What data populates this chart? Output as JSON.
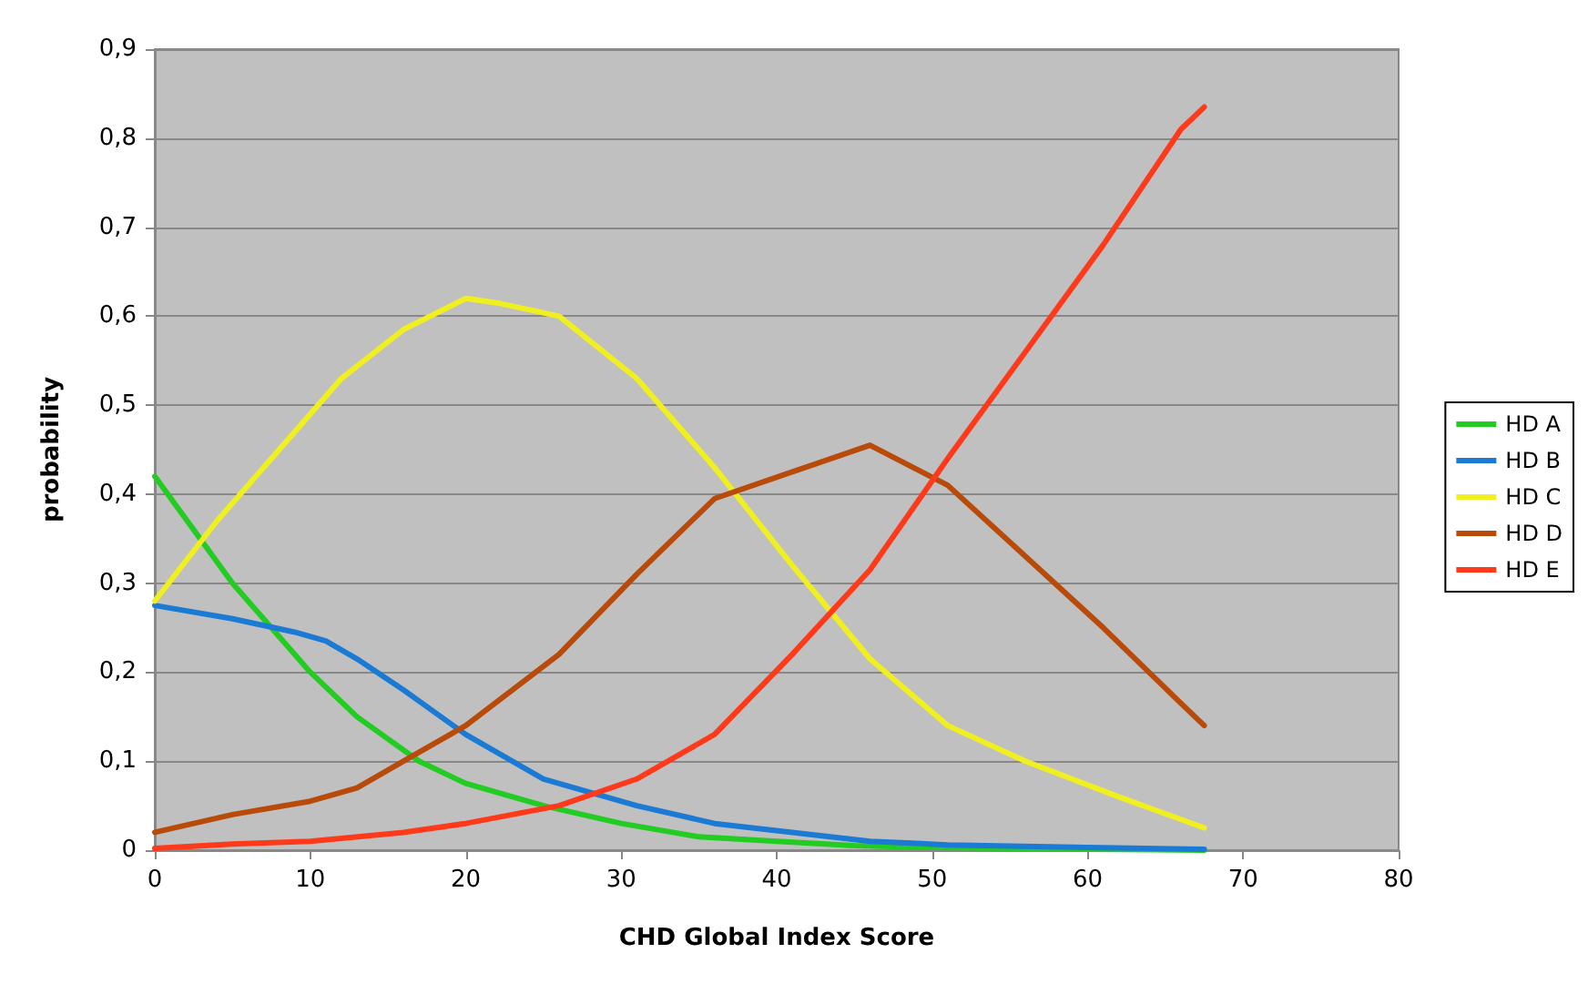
{
  "chart_data": {
    "type": "line",
    "xlabel": "CHD Global Index Score",
    "ylabel": "probability",
    "xlim": [
      0,
      80
    ],
    "xticks": [
      0,
      10,
      20,
      30,
      40,
      50,
      60,
      70,
      80
    ],
    "ylim": [
      0,
      0.9
    ],
    "yticks": [
      {
        "value": 0,
        "label": "0"
      },
      {
        "value": 0.1,
        "label": "0,1"
      },
      {
        "value": 0.2,
        "label": "0,2"
      },
      {
        "value": 0.3,
        "label": "0,3"
      },
      {
        "value": 0.4,
        "label": "0,4"
      },
      {
        "value": 0.5,
        "label": "0,5"
      },
      {
        "value": 0.6,
        "label": "0,6"
      },
      {
        "value": 0.7,
        "label": "0,7"
      },
      {
        "value": 0.8,
        "label": "0,8"
      },
      {
        "value": 0.9,
        "label": "0,9"
      }
    ],
    "grid": "y",
    "legend": "right",
    "marker": "none",
    "line_style": "solid",
    "series": [
      {
        "name": "HD A",
        "color": "#22cc22",
        "x": [
          0,
          5,
          10,
          13,
          17,
          20,
          25,
          30,
          35,
          40,
          45,
          50,
          60,
          67.5
        ],
        "values": [
          0.42,
          0.3,
          0.2,
          0.15,
          0.1,
          0.075,
          0.05,
          0.03,
          0.015,
          0.01,
          0.005,
          0.003,
          0.001,
          0
        ]
      },
      {
        "name": "HD B",
        "color": "#1a7ad4",
        "x": [
          0,
          5,
          9,
          11,
          13,
          16,
          20,
          25,
          31,
          36,
          41,
          46,
          51,
          60,
          67.5
        ],
        "values": [
          0.275,
          0.26,
          0.245,
          0.235,
          0.215,
          0.18,
          0.13,
          0.08,
          0.05,
          0.03,
          0.02,
          0.01,
          0.006,
          0.003,
          0.001
        ]
      },
      {
        "name": "HD C",
        "color": "#f0f020",
        "x": [
          0,
          4,
          8,
          12,
          16,
          20,
          22,
          26,
          31,
          36,
          41,
          46,
          51,
          56,
          62,
          67.5
        ],
        "values": [
          0.28,
          0.37,
          0.45,
          0.53,
          0.585,
          0.62,
          0.615,
          0.6,
          0.53,
          0.43,
          0.32,
          0.215,
          0.14,
          0.1,
          0.06,
          0.025
        ]
      },
      {
        "name": "HD D",
        "color": "#b84a0a",
        "x": [
          0,
          5,
          10,
          13,
          16,
          20,
          26,
          31,
          36,
          41,
          46,
          51,
          56,
          61,
          66,
          67.5
        ],
        "values": [
          0.02,
          0.04,
          0.055,
          0.07,
          0.1,
          0.14,
          0.22,
          0.31,
          0.395,
          0.425,
          0.455,
          0.41,
          0.33,
          0.25,
          0.165,
          0.14
        ]
      },
      {
        "name": "HD E",
        "color": "#ff3a1a",
        "x": [
          0,
          5,
          10,
          16,
          20,
          26,
          31,
          36,
          41,
          46,
          51,
          56,
          61,
          66,
          67.5
        ],
        "values": [
          0.002,
          0.007,
          0.01,
          0.02,
          0.03,
          0.05,
          0.08,
          0.13,
          0.22,
          0.315,
          0.44,
          0.56,
          0.68,
          0.81,
          0.835
        ]
      }
    ]
  }
}
